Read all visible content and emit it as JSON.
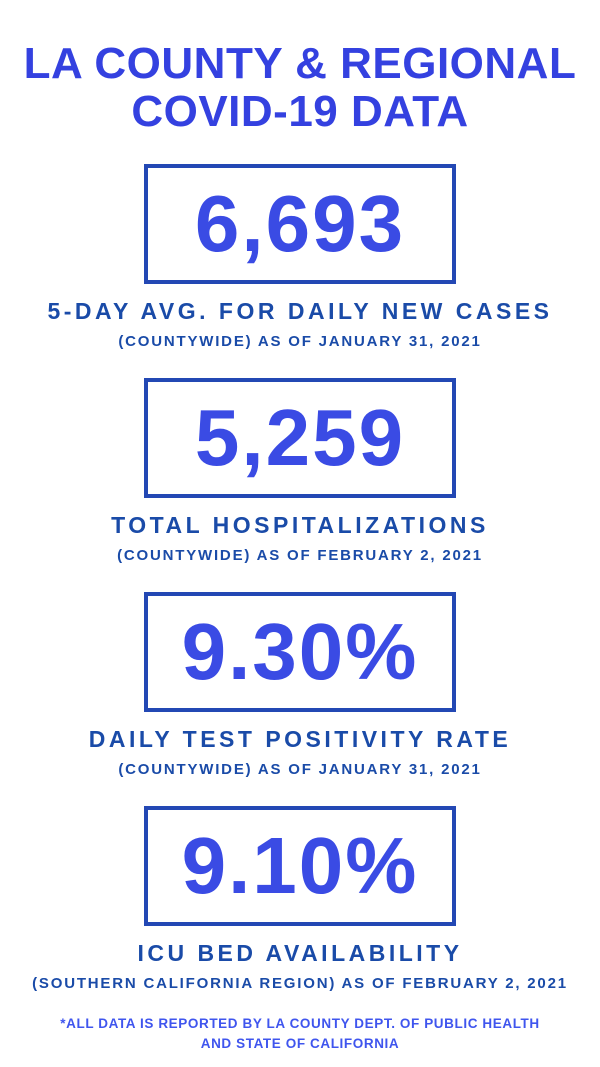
{
  "header": {
    "title_line1": "LA COUNTY & REGIONAL",
    "title_line2": "COVID-19 DATA"
  },
  "stats": [
    {
      "value": "6,693",
      "label": "5-DAY AVG. FOR DAILY NEW CASES",
      "sublabel": "(COUNTYWIDE) AS OF JANUARY 31, 2021"
    },
    {
      "value": "5,259",
      "label": "TOTAL HOSPITALIZATIONS",
      "sublabel": "(COUNTYWIDE) AS OF FEBRUARY 2, 2021"
    },
    {
      "value": "9.30%",
      "label": "DAILY TEST POSITIVITY RATE",
      "sublabel": "(COUNTYWIDE) AS OF JANUARY 31, 2021"
    },
    {
      "value": "9.10%",
      "label": "ICU BED AVAILABILITY",
      "sublabel": "(SOUTHERN CALIFORNIA REGION) AS OF FEBRUARY 2, 2021"
    }
  ],
  "footer": {
    "line1": "*ALL DATA IS REPORTED BY LA COUNTY DEPT. OF PUBLIC HEALTH",
    "line2": "AND STATE OF CALIFORNIA"
  },
  "colors": {
    "background": "#ffffff",
    "title_color": "#3441e0",
    "value_color": "#3a4be4",
    "box_border": "#2348b4",
    "label_color": "#1a4ba8",
    "footer_color": "#3f55ee"
  }
}
